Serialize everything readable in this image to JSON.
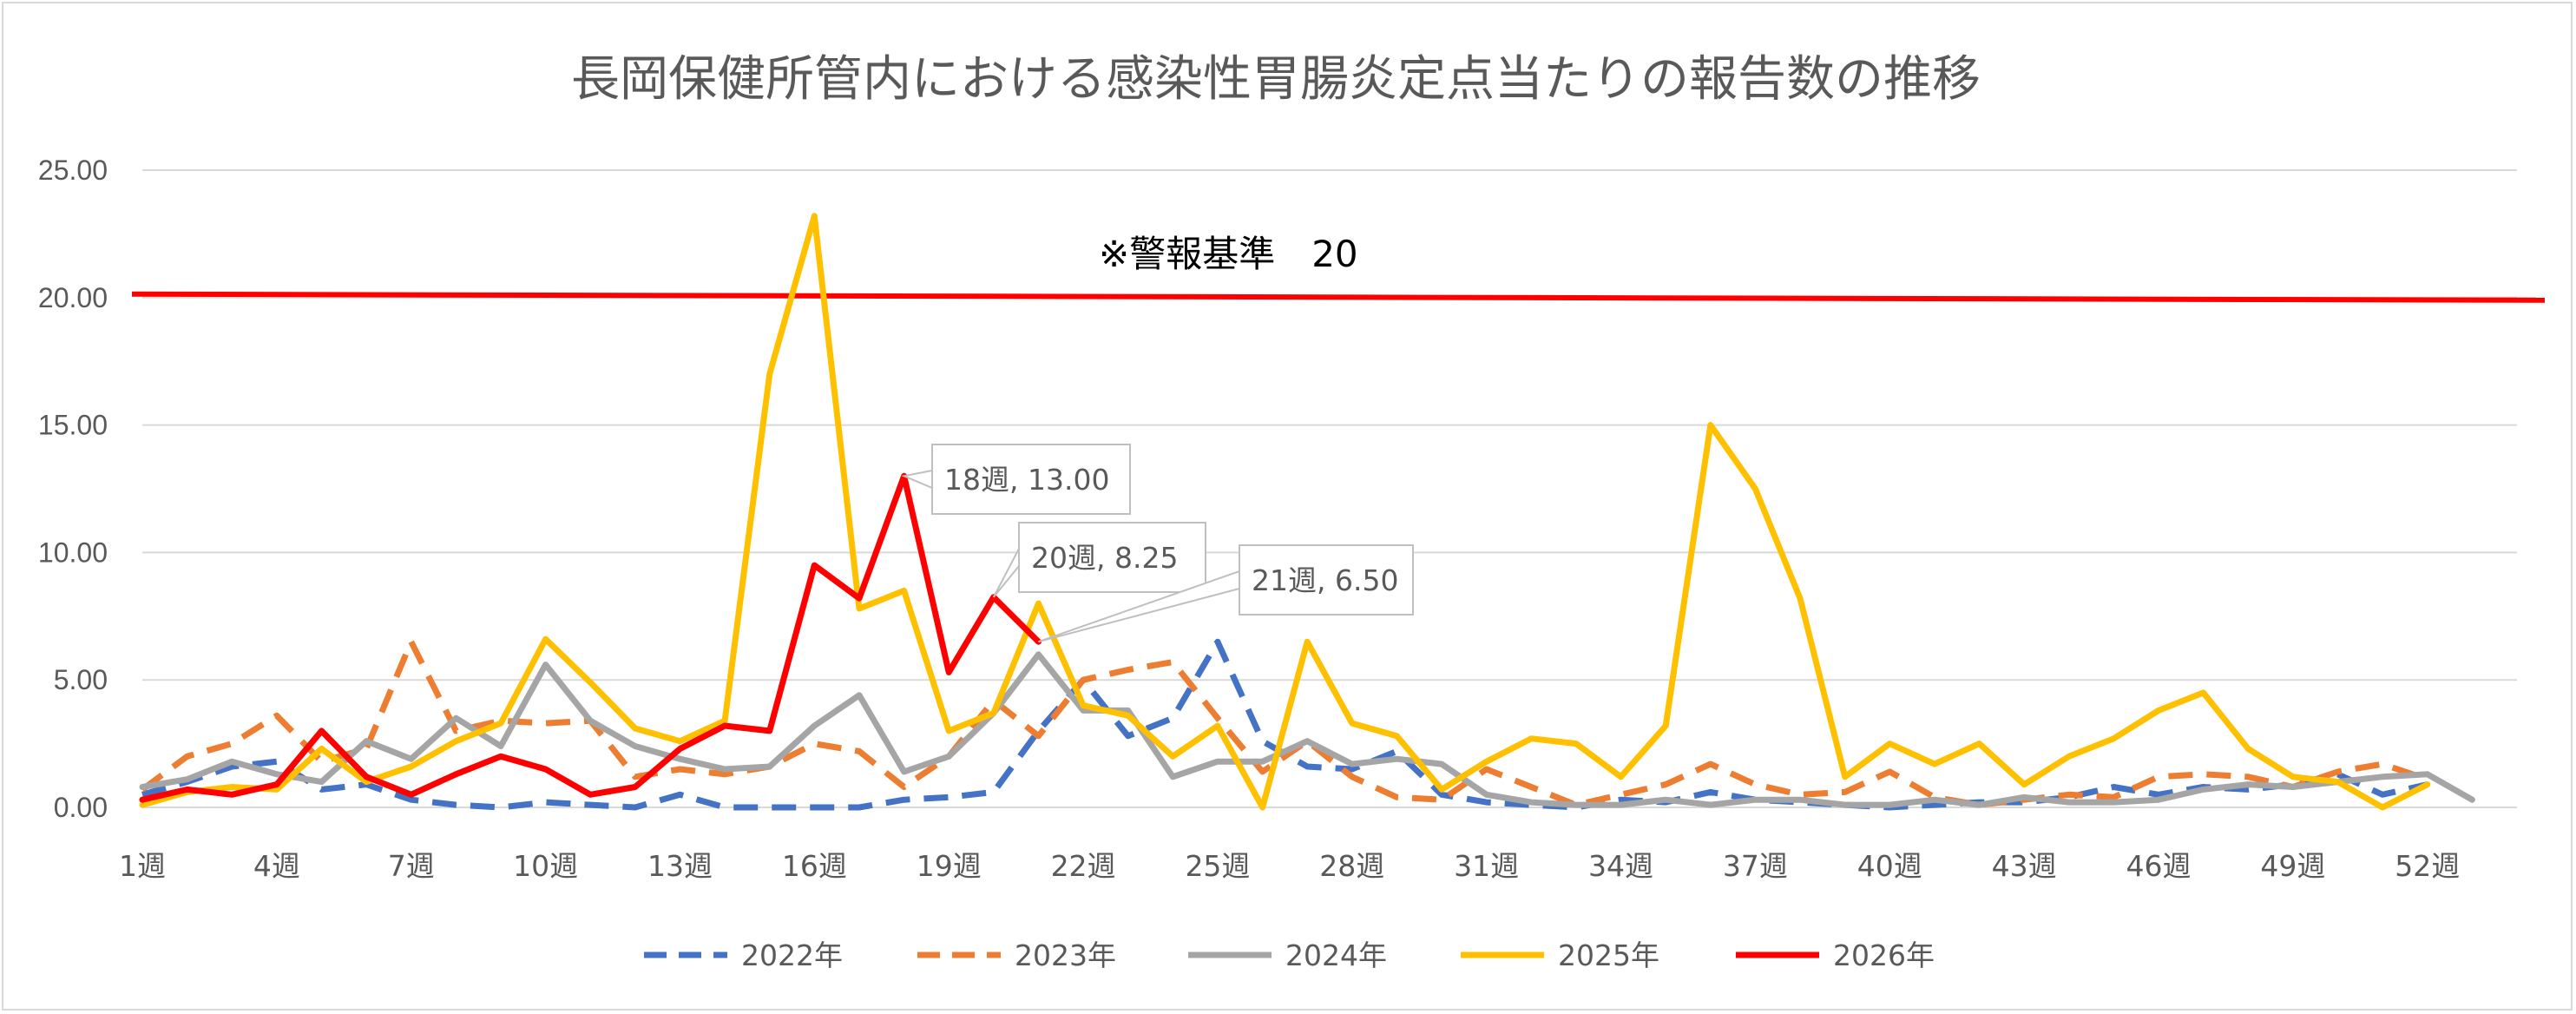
{
  "chart_data": {
    "type": "line",
    "title": "長岡保健所管内における感染性胃腸炎定点当たりの報告数の推移",
    "xlabel": "",
    "ylabel": "",
    "ylim": [
      0,
      25
    ],
    "y_ticks": [
      "0.00",
      "5.00",
      "10.00",
      "15.00",
      "20.00",
      "25.00"
    ],
    "x_tick_labels": [
      "1週",
      "4週",
      "7週",
      "10週",
      "13週",
      "16週",
      "19週",
      "22週",
      "25週",
      "28週",
      "31週",
      "34週",
      "37週",
      "40週",
      "43週",
      "46週",
      "49週",
      "52週"
    ],
    "x_tick_weeks": [
      1,
      4,
      7,
      10,
      13,
      16,
      19,
      22,
      25,
      28,
      31,
      34,
      37,
      40,
      43,
      46,
      49,
      52
    ],
    "x_range": [
      1,
      54
    ],
    "grid": true,
    "legend_position": "bottom",
    "threshold": {
      "value": 20,
      "label": "※警報基準　20",
      "color": "#ff0000"
    },
    "series": [
      {
        "name": "2022年",
        "color": "#4472c4",
        "dash": true,
        "values": [
          0.5,
          1.0,
          1.6,
          1.8,
          0.7,
          0.9,
          0.3,
          0.1,
          0.0,
          0.2,
          0.1,
          0.0,
          0.5,
          0.0,
          0.0,
          0.0,
          0.0,
          0.3,
          0.4,
          0.6,
          3.0,
          5.0,
          2.8,
          3.5,
          6.5,
          2.6,
          1.6,
          1.5,
          2.2,
          0.5,
          0.2,
          0.1,
          0.0,
          0.3,
          0.2,
          0.6,
          0.3,
          0.2,
          0.1,
          0.0,
          0.1,
          0.2,
          0.2,
          0.4,
          0.8,
          0.5,
          0.8,
          0.7,
          0.9,
          1.3,
          0.5,
          0.9
        ]
      },
      {
        "name": "2023年",
        "color": "#ed7d31",
        "dash": true,
        "values": [
          0.7,
          2.0,
          2.5,
          3.6,
          1.8,
          2.3,
          6.5,
          3.0,
          3.4,
          3.3,
          3.4,
          1.2,
          1.5,
          1.3,
          1.6,
          2.5,
          2.2,
          0.8,
          2.0,
          4.2,
          2.8,
          5.0,
          5.4,
          5.7,
          3.5,
          1.4,
          2.6,
          1.2,
          0.4,
          0.3,
          1.5,
          0.8,
          0.1,
          0.5,
          0.9,
          1.7,
          0.9,
          0.5,
          0.6,
          1.4,
          0.4,
          0.1,
          0.3,
          0.5,
          0.4,
          1.2,
          1.3,
          1.2,
          0.8,
          1.4,
          1.7,
          1.1
        ]
      },
      {
        "name": "2024年",
        "color": "#a5a5a5",
        "dash": false,
        "values": [
          0.8,
          1.1,
          1.8,
          1.3,
          1.0,
          2.6,
          1.9,
          3.5,
          2.4,
          5.6,
          3.4,
          2.4,
          1.9,
          1.5,
          1.6,
          3.2,
          4.4,
          1.4,
          2.0,
          3.7,
          6.0,
          3.8,
          3.8,
          1.2,
          1.8,
          1.8,
          2.6,
          1.7,
          1.9,
          1.7,
          0.5,
          0.2,
          0.1,
          0.1,
          0.3,
          0.1,
          0.3,
          0.3,
          0.1,
          0.1,
          0.3,
          0.1,
          0.4,
          0.2,
          0.2,
          0.3,
          0.7,
          0.9,
          0.8,
          1.0,
          1.2,
          1.3,
          0.3
        ]
      },
      {
        "name": "2025年",
        "color": "#ffc000",
        "dash": false,
        "values": [
          0.1,
          0.6,
          0.8,
          0.7,
          2.3,
          1.0,
          1.6,
          2.6,
          3.3,
          6.6,
          4.9,
          3.1,
          2.6,
          3.4,
          17.0,
          23.2,
          7.8,
          8.5,
          3.0,
          3.7,
          8.0,
          4.0,
          3.6,
          2.0,
          3.2,
          0.0,
          6.5,
          3.3,
          2.8,
          0.7,
          1.8,
          2.7,
          2.5,
          1.2,
          3.2,
          15.0,
          12.5,
          8.2,
          1.2,
          2.5,
          1.7,
          2.5,
          0.9,
          2.0,
          2.7,
          3.8,
          4.5,
          2.3,
          1.2,
          1.0,
          0.0,
          0.9
        ]
      },
      {
        "name": "2026年",
        "color": "#ff0000",
        "dash": false,
        "values": [
          0.3,
          0.7,
          0.5,
          0.9,
          3.0,
          1.2,
          0.5,
          1.3,
          2.0,
          1.5,
          0.5,
          0.8,
          2.3,
          3.2,
          3.0,
          9.5,
          8.2,
          13.0,
          5.3,
          8.25,
          6.5
        ]
      }
    ],
    "annotations": [
      {
        "label": "18週, 13.00",
        "week": 18,
        "value": 13.0
      },
      {
        "label": "20週, 8.25",
        "week": 20,
        "value": 8.25
      },
      {
        "label": "21週, 6.50",
        "week": 21,
        "value": 6.5
      }
    ]
  }
}
